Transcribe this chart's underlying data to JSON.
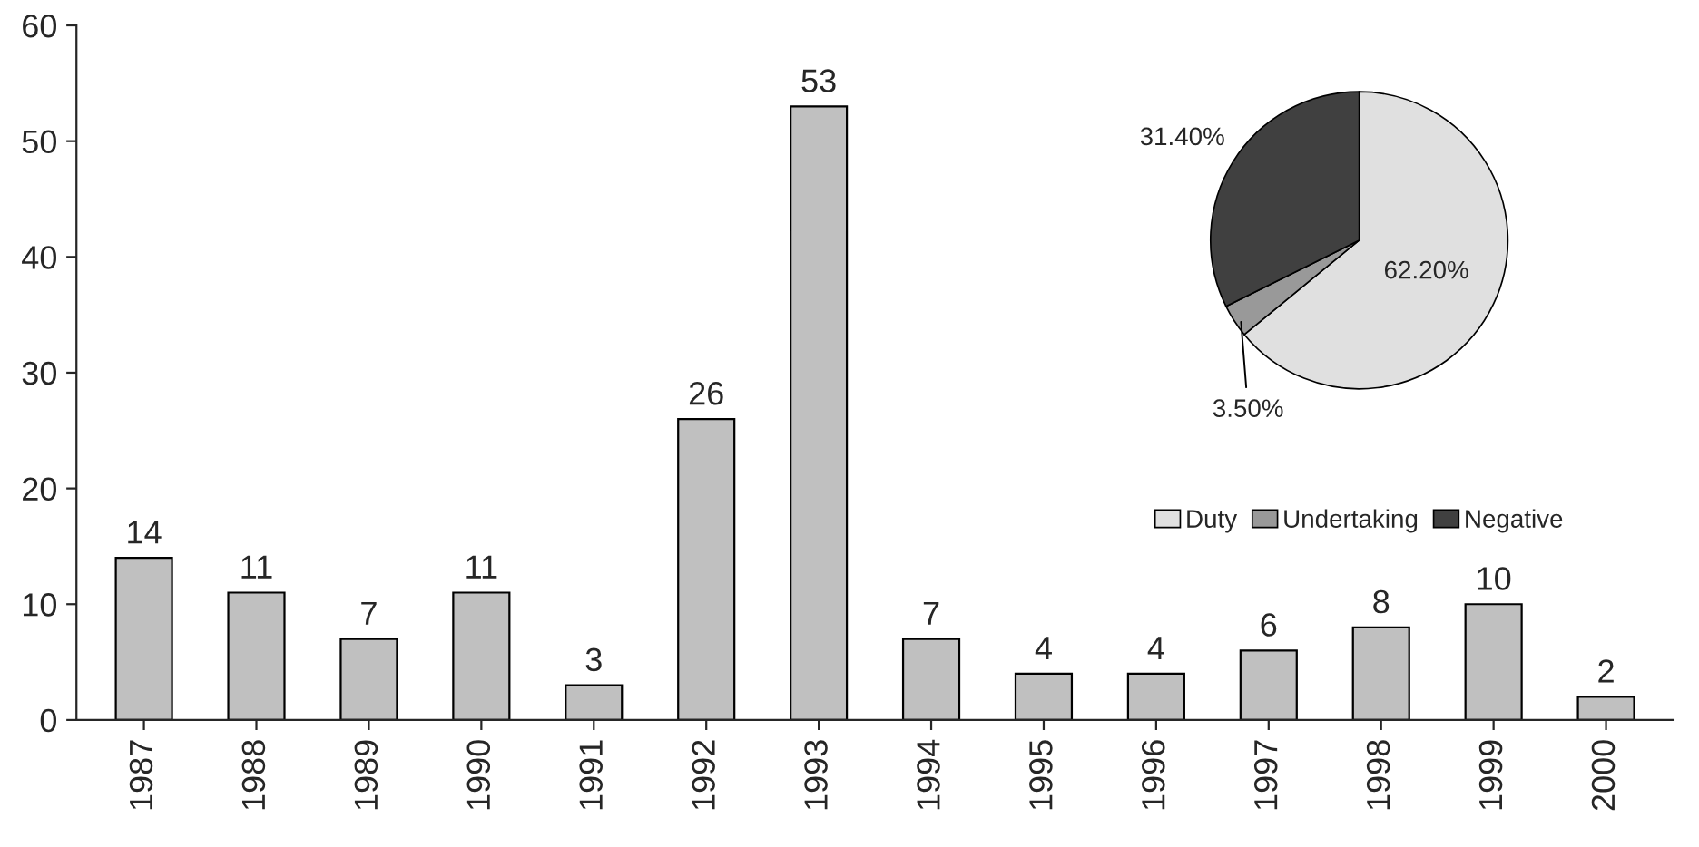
{
  "chart_data": [
    {
      "type": "bar",
      "categories": [
        "1987",
        "1988",
        "1989",
        "1990",
        "1991",
        "1992",
        "1993",
        "1994",
        "1995",
        "1996",
        "1997",
        "1998",
        "1999",
        "2000"
      ],
      "values": [
        14,
        11,
        7,
        11,
        3,
        26,
        53,
        7,
        4,
        4,
        6,
        8,
        10,
        2
      ],
      "color": "#c0c0c0",
      "ylim": [
        0,
        60
      ],
      "yticks": [
        0,
        10,
        20,
        30,
        40,
        50,
        60
      ],
      "grid": false,
      "data_labels": true
    },
    {
      "type": "pie",
      "categories": [
        "Duty",
        "Undertaking",
        "Negative"
      ],
      "values": [
        62.2,
        3.5,
        31.4
      ],
      "colors": [
        "#e0e0e0",
        "#999999",
        "#404040"
      ],
      "value_labels": [
        "62.20%",
        "3.50%",
        "31.40%"
      ],
      "legend": "bottom"
    }
  ]
}
